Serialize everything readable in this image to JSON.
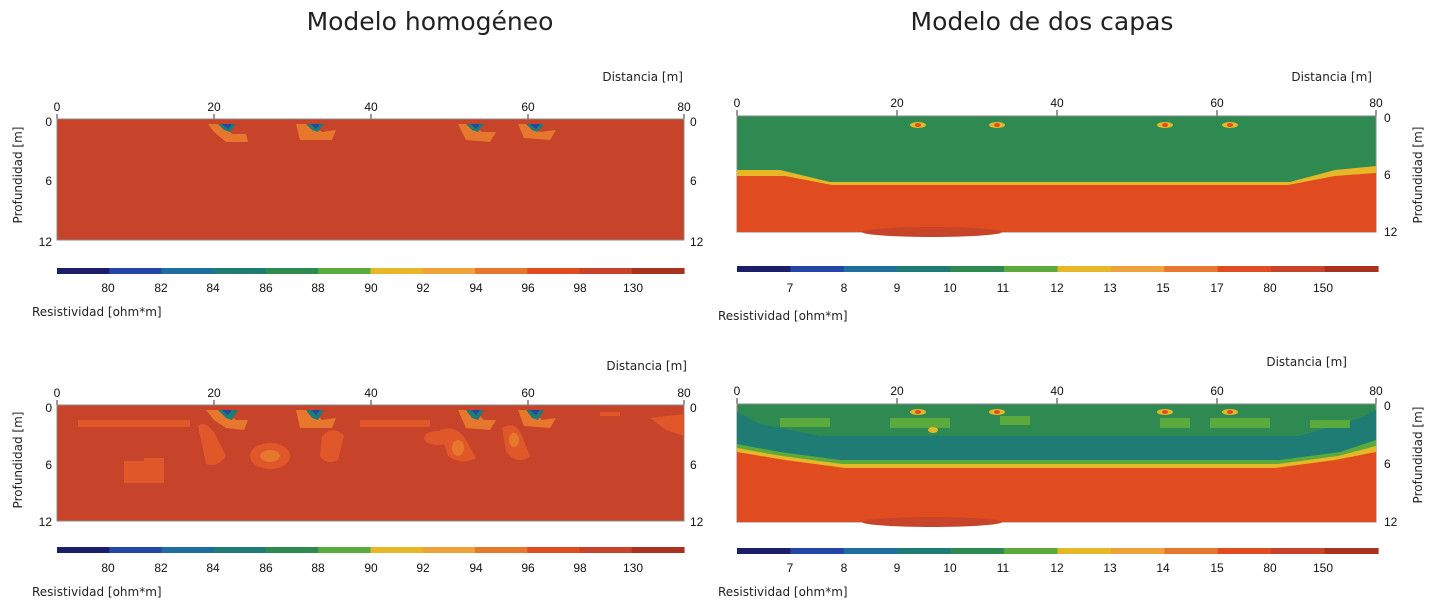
{
  "titles": {
    "left": "Modelo homogéneo",
    "right": "Modelo de dos capas"
  },
  "panels": [
    {
      "distance_label": "Distancia [m]",
      "depth_label": "Profundidad [m]",
      "resistivity_label": "Resistividad [ohm*m]",
      "x_ticks": [
        "0",
        "20",
        "40",
        "60",
        "80"
      ],
      "depth_ticks": [
        "0",
        "6",
        "12"
      ],
      "colorbar_ticks": [
        "80",
        "82",
        "84",
        "86",
        "88",
        "90",
        "92",
        "94",
        "96",
        "98",
        "130"
      ],
      "background_color": "#C7432A"
    },
    {
      "distance_label": "Distancia [m]",
      "depth_label": "Profundidad [m]",
      "resistivity_label": "Resistividad [ohm*m]",
      "x_ticks": [
        "0",
        "20",
        "40",
        "60",
        "80"
      ],
      "depth_ticks": [
        "0",
        "6",
        "12"
      ],
      "colorbar_ticks": [
        "7",
        "8",
        "9",
        "10",
        "11",
        "12",
        "13",
        "15",
        "17",
        "80",
        "150"
      ],
      "background_color": "#2F8A52"
    },
    {
      "distance_label": "Distancia [m]",
      "depth_label": "Profundidad [m]",
      "resistivity_label": "Resistividad [ohm*m]",
      "x_ticks": [
        "0",
        "20",
        "40",
        "60",
        "80"
      ],
      "depth_ticks": [
        "0",
        "6",
        "12"
      ],
      "colorbar_ticks": [
        "80",
        "82",
        "84",
        "86",
        "88",
        "90",
        "92",
        "94",
        "96",
        "98",
        "130"
      ],
      "background_color": "#C7432A"
    },
    {
      "distance_label": "Distancia [m]",
      "depth_label": "Profundidad [m]",
      "resistivity_label": "Resistividad [ohm*m]",
      "x_ticks": [
        "0",
        "20",
        "40",
        "60",
        "80"
      ],
      "depth_ticks": [
        "0",
        "6",
        "12"
      ],
      "colorbar_ticks": [
        "7",
        "8",
        "9",
        "10",
        "11",
        "12",
        "13",
        "14",
        "15",
        "80",
        "150"
      ],
      "background_color": "#2F8A52"
    }
  ],
  "colorbar_colors": [
    "#1B1F6B",
    "#2346A8",
    "#1E6FA0",
    "#1F7C74",
    "#2F8A52",
    "#5BAA3E",
    "#E6B726",
    "#F0A23A",
    "#E8772E",
    "#E04B20",
    "#C7432A",
    "#A8321E"
  ]
}
